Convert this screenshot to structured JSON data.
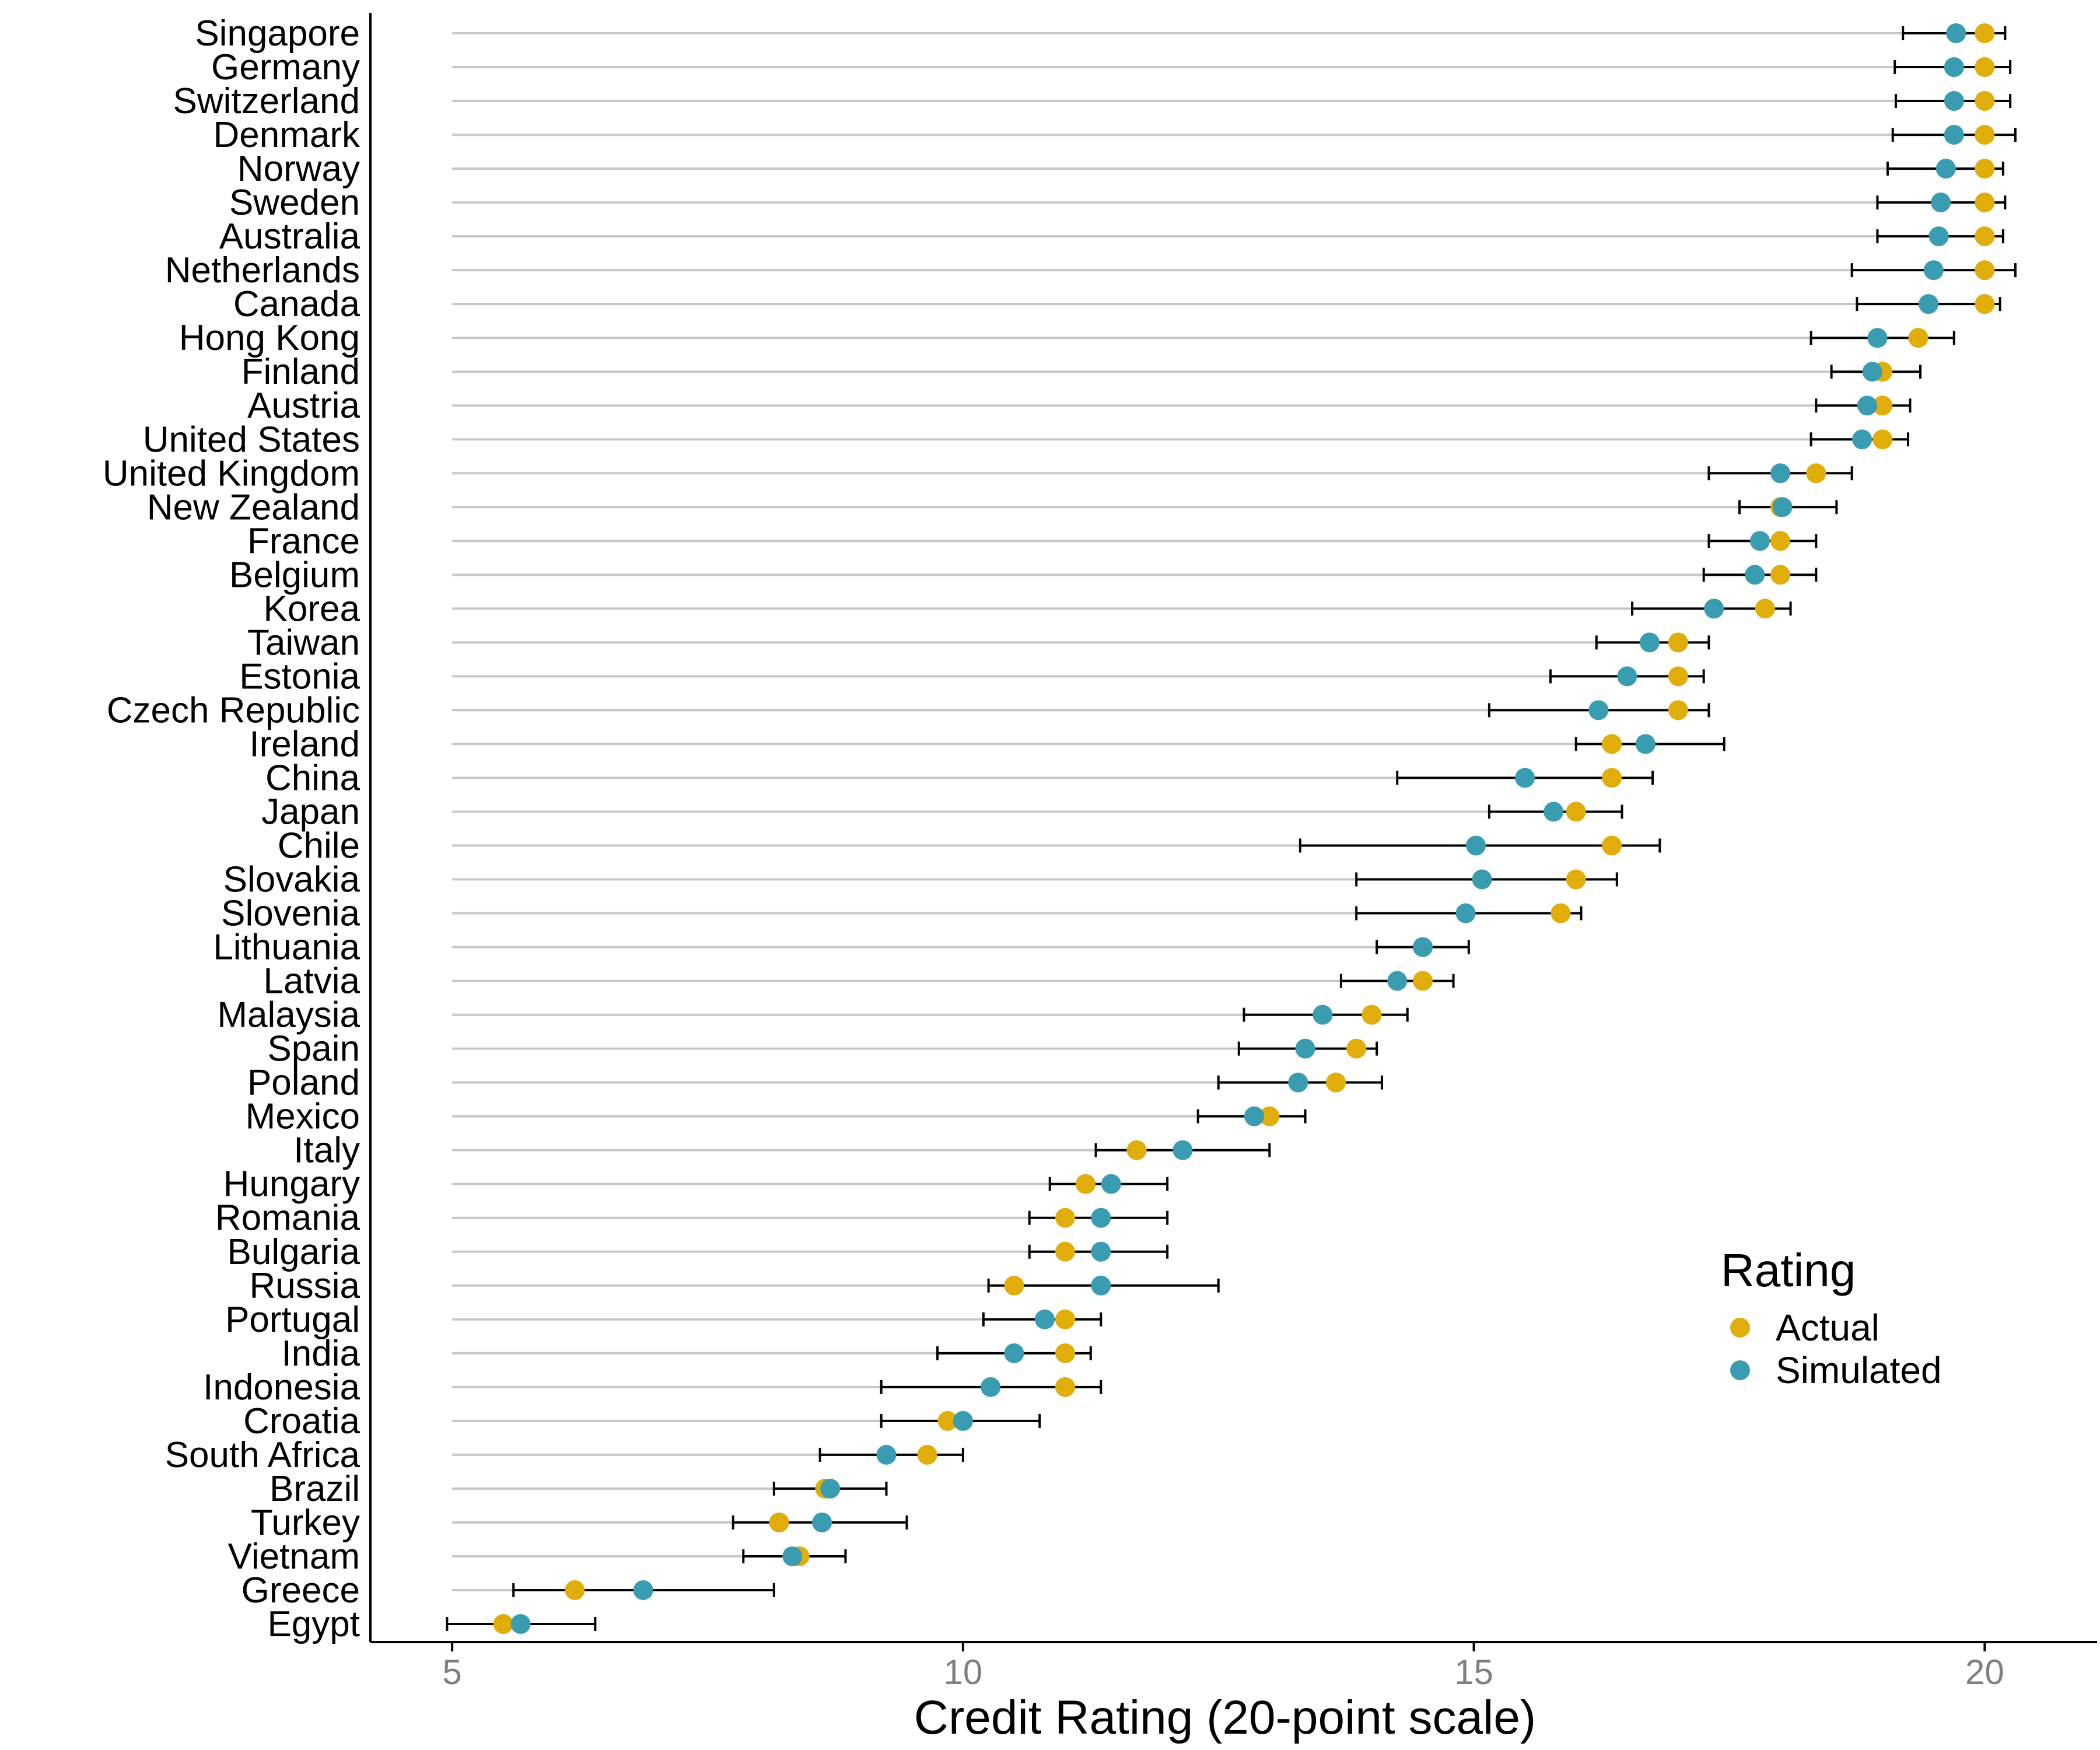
{
  "chart_data": {
    "type": "scatter",
    "xlabel": "Credit Rating (20-point scale)",
    "xlim": [
      4.2,
      21.1
    ],
    "xticks": [
      5,
      10,
      15,
      20
    ],
    "grid": false,
    "legend": {
      "title": "Rating",
      "placement": "right",
      "entries": [
        {
          "name": "Actual",
          "color": "#E0AD0B"
        },
        {
          "name": "Simulated",
          "color": "#3A9CB1"
        }
      ]
    },
    "colors": {
      "actual": "#E0AD0B",
      "simulated": "#3A9CB1",
      "guide_line": "#C8C8C8",
      "error_bar": "#000000"
    },
    "guide_line_start": 5,
    "categories": [
      "Singapore",
      "Germany",
      "Switzerland",
      "Denmark",
      "Norway",
      "Sweden",
      "Australia",
      "Netherlands",
      "Canada",
      "Hong Kong",
      "Finland",
      "Austria",
      "United States",
      "United Kingdom",
      "New Zealand",
      "France",
      "Belgium",
      "Korea",
      "Taiwan",
      "Estonia",
      "Czech Republic",
      "Ireland",
      "China",
      "Japan",
      "Chile",
      "Slovakia",
      "Slovenia",
      "Lithuania",
      "Latvia",
      "Malaysia",
      "Spain",
      "Poland",
      "Mexico",
      "Italy",
      "Hungary",
      "Romania",
      "Bulgaria",
      "Russia",
      "Portugal",
      "India",
      "Indonesia",
      "Croatia",
      "South Africa",
      "Brazil",
      "Turkey",
      "Vietnam",
      "Greece",
      "Egypt"
    ],
    "series": [
      {
        "name": "Actual",
        "values": [
          20,
          20,
          20,
          20,
          20,
          20,
          20,
          20,
          20,
          19.35,
          19,
          19,
          19,
          18.35,
          18,
          18,
          18,
          17.85,
          17,
          17,
          17,
          16.35,
          16.35,
          16,
          16.35,
          16,
          15.85,
          14.5,
          14.5,
          14,
          13.85,
          13.65,
          13,
          11.7,
          11.2,
          11,
          11,
          10.5,
          11,
          11,
          11,
          9.85,
          9.65,
          8.65,
          8.2,
          8.4,
          6.2,
          5.5
        ]
      },
      {
        "name": "Simulated",
        "values": [
          19.72,
          19.7,
          19.7,
          19.7,
          19.62,
          19.57,
          19.55,
          19.5,
          19.45,
          18.95,
          18.9,
          18.85,
          18.8,
          18,
          18.02,
          17.8,
          17.75,
          17.35,
          16.72,
          16.5,
          16.22,
          16.68,
          15.5,
          15.78,
          15.02,
          15.08,
          14.92,
          14.5,
          14.25,
          13.52,
          13.35,
          13.28,
          12.85,
          12.15,
          11.45,
          11.35,
          11.35,
          11.35,
          10.8,
          10.5,
          10.27,
          10,
          9.25,
          8.7,
          8.62,
          8.33,
          6.87,
          5.67
        ]
      },
      {
        "name": "Simulated range",
        "low": [
          19.2,
          19.12,
          19.13,
          19.1,
          19.05,
          18.95,
          18.95,
          18.7,
          18.75,
          18.3,
          18.5,
          18.35,
          18.3,
          17.3,
          17.6,
          17.3,
          17.25,
          16.55,
          16.2,
          15.75,
          15.15,
          16,
          14.25,
          15.15,
          13.3,
          13.85,
          13.85,
          14.05,
          13.7,
          12.75,
          12.7,
          12.5,
          12.3,
          11.3,
          10.85,
          10.65,
          10.65,
          10.25,
          10.2,
          9.75,
          9.2,
          9.2,
          8.6,
          8.15,
          7.75,
          7.85,
          5.6,
          4.95
        ],
        "high": [
          20.2,
          20.25,
          20.25,
          20.3,
          20.18,
          20.2,
          20.18,
          20.3,
          20.15,
          19.7,
          19.37,
          19.27,
          19.25,
          18.7,
          18.55,
          18.35,
          18.35,
          18.1,
          17.3,
          17.25,
          17.3,
          17.45,
          16.75,
          16.45,
          16.82,
          16.4,
          16.05,
          14.95,
          14.8,
          14.35,
          14.05,
          14.1,
          13.35,
          13,
          12,
          12,
          12,
          12.5,
          11.35,
          11.25,
          11.35,
          10.75,
          10,
          9.25,
          9.45,
          8.85,
          8.15,
          6.4
        ]
      }
    ]
  }
}
